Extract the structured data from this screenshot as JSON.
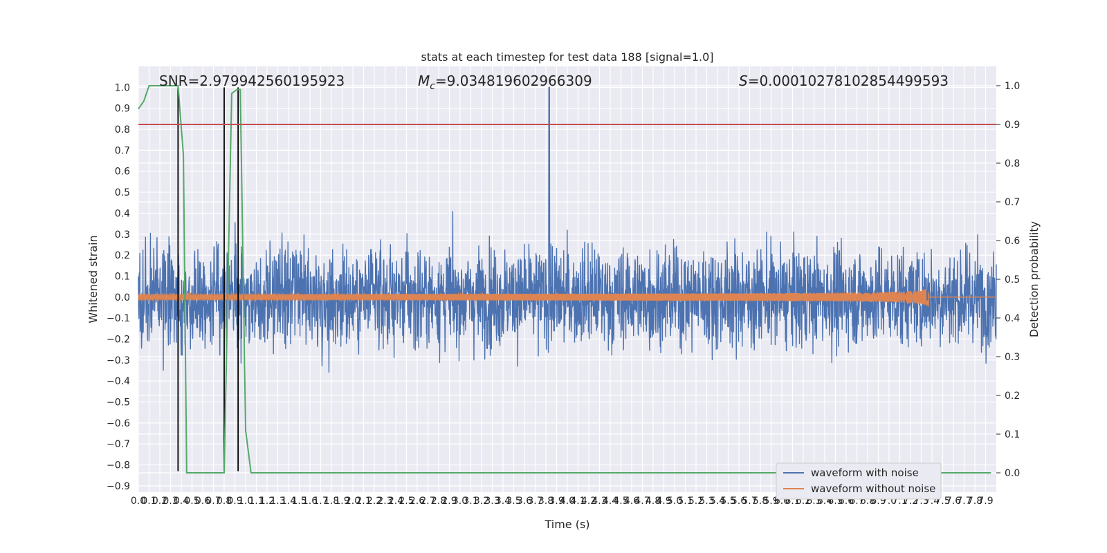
{
  "chart_data": {
    "type": "line",
    "title": "stats at each timestep for test data 188 [signal=1.0]",
    "xlabel": "Time (s)",
    "ylabel": "Whitened strain",
    "y2label": "Detection probability",
    "xlim": [
      0.0,
      8.0
    ],
    "ylim": [
      -0.93,
      1.1
    ],
    "y2lim": [
      -0.05,
      1.05
    ],
    "grid": true,
    "legend_position": "lower-right",
    "x_tick_step": 0.1,
    "y_ticks": [
      -0.9,
      -0.8,
      -0.7,
      -0.6,
      -0.5,
      -0.4,
      -0.3,
      -0.2,
      -0.1,
      0.0,
      0.1,
      0.2,
      0.3,
      0.4,
      0.5,
      0.6,
      0.7,
      0.8,
      0.9,
      1.0
    ],
    "y2_ticks": [
      0.0,
      0.1,
      0.2,
      0.3,
      0.4,
      0.5,
      0.6,
      0.7,
      0.8,
      0.9,
      1.0
    ],
    "annotations": {
      "snr": "SNR=2.979942560195923",
      "mc": "=9.034819602966309",
      "s": "=0.00010278102854499593"
    },
    "series": [
      {
        "name": "waveform with noise",
        "color": "#4c72b0",
        "axis": "left",
        "noise_amplitude": 0.2,
        "spike": {
          "x": 3.83,
          "y": 1.0
        }
      },
      {
        "name": "waveform without noise",
        "color": "#dd8452",
        "axis": "left",
        "chirp_end": 7.37,
        "peak_amplitude": 0.08
      },
      {
        "name": "",
        "color": "#55a868",
        "axis": "right",
        "x": [
          0.0,
          0.05,
          0.1,
          0.2,
          0.3,
          0.37,
          0.42,
          0.45,
          0.5,
          0.6,
          0.7,
          0.75,
          0.8,
          0.87,
          0.92,
          0.95,
          1.0,
          1.05,
          1.1,
          2.0,
          3.0,
          4.0,
          5.0,
          6.0,
          7.0,
          7.95
        ],
        "y": [
          0.94,
          0.96,
          1.0,
          1.0,
          1.0,
          1.0,
          0.82,
          0.0,
          0.0,
          0.0,
          0.0,
          0.0,
          0.0,
          0.98,
          0.99,
          0.99,
          0.11,
          0.0,
          0.0,
          0.0,
          0.0,
          0.0,
          0.0,
          0.0,
          0.0,
          0.0
        ]
      }
    ],
    "threshold": {
      "axis": "right",
      "value": 0.9,
      "color": "#c44e52"
    },
    "vertical_markers": {
      "x": [
        0.37,
        0.8,
        0.93
      ],
      "color": "#000000",
      "ymin": -0.83,
      "ymax": 1.0
    }
  }
}
